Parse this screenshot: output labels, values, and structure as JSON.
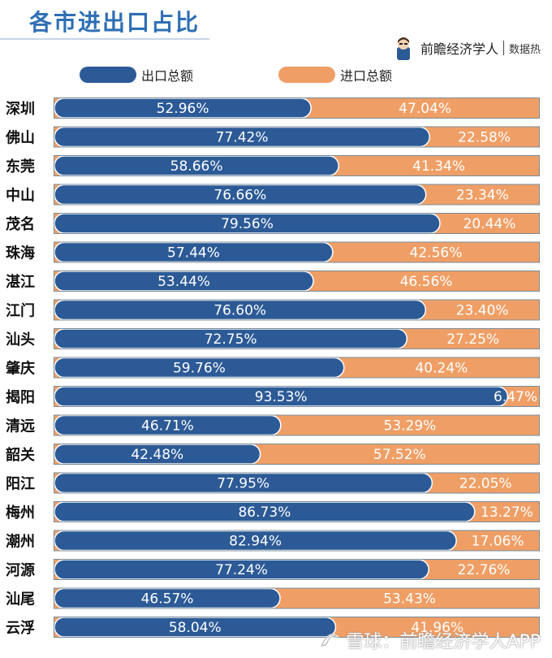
{
  "header": {
    "title": "各市进出口占比",
    "brand_name": "前瞻经济学人",
    "brand_tag": "数据热"
  },
  "legend": [
    {
      "label": "出口总额",
      "color": "#2c5a96"
    },
    {
      "label": "进口总额",
      "color": "#ef9f66"
    }
  ],
  "watermark": {
    "text": "雪球：前瞻经济学人APP"
  },
  "chart_data": {
    "type": "bar",
    "orientation": "horizontal",
    "stacked": true,
    "normalized_percent": true,
    "categories": [
      "深圳",
      "佛山",
      "东莞",
      "中山",
      "茂名",
      "珠海",
      "湛江",
      "江门",
      "汕头",
      "肇庆",
      "揭阳",
      "清远",
      "韶关",
      "阳江",
      "梅州",
      "潮州",
      "河源",
      "汕尾",
      "云浮"
    ],
    "series": [
      {
        "name": "出口总额",
        "color": "#2c5a96",
        "values": [
          52.96,
          77.42,
          58.66,
          76.66,
          79.56,
          57.44,
          53.44,
          76.6,
          72.75,
          59.76,
          93.53,
          46.71,
          42.48,
          77.95,
          86.73,
          82.94,
          77.24,
          46.57,
          58.04
        ],
        "labels": [
          "52.96%",
          "77.42%",
          "58.66%",
          "76.66%",
          "79.56%",
          "57.44%",
          "53.44%",
          "76.60%",
          "72.75%",
          "59.76%",
          "93.53%",
          "46.71%",
          "42.48%",
          "77.95%",
          "86.73%",
          "82.94%",
          "77.24%",
          "46.57%",
          "58.04%"
        ]
      },
      {
        "name": "进口总额",
        "color": "#ef9f66",
        "values": [
          47.04,
          22.58,
          41.34,
          23.34,
          20.44,
          42.56,
          46.56,
          23.4,
          27.25,
          40.24,
          6.47,
          53.29,
          57.52,
          22.05,
          13.27,
          17.06,
          22.76,
          53.43,
          41.96
        ],
        "labels": [
          "47.04%",
          "22.58%",
          "41.34%",
          "23.34%",
          "20.44%",
          "42.56%",
          "46.56%",
          "23.40%",
          "27.25%",
          "40.24%",
          "6.47%",
          "53.29%",
          "57.52%",
          "22.05%",
          "13.27%",
          "17.06%",
          "22.76%",
          "53.43%",
          "41.96%"
        ]
      }
    ],
    "xlim": [
      0,
      100
    ],
    "grid": false,
    "legend_position": "top"
  }
}
